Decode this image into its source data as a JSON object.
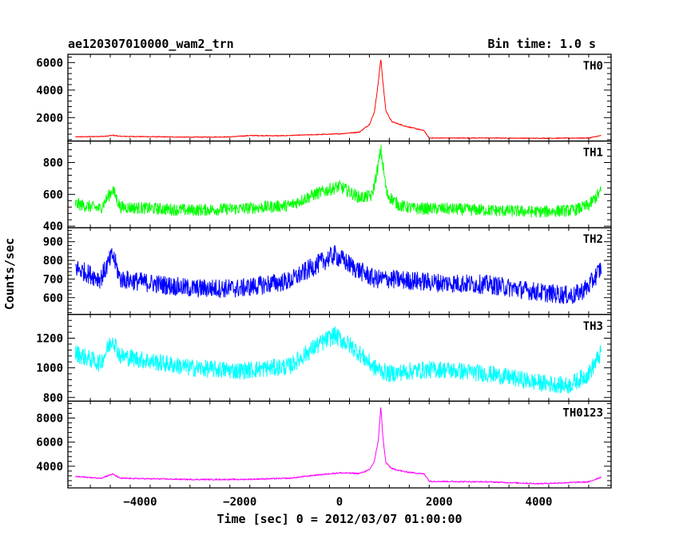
{
  "header": {
    "title": "ae120307010000_wam2_trn",
    "bin_time": "Bin time: 1.0 s"
  },
  "chart_data": {
    "type": "line",
    "title": "ae120307010000_wam2_trn",
    "subtitle": "Bin time: 1.0 s",
    "xlabel": "Time [sec] 0 = 2012/03/07 01:00:00",
    "ylabel": "Counts/sec",
    "xlim": [
      -5450,
      5450
    ],
    "x_ticks": [
      -4000,
      -2000,
      0,
      2000,
      4000
    ],
    "grid": false,
    "panels": [
      {
        "name": "TH0",
        "color": "#ff0000",
        "ylim": [
          300,
          6600
        ],
        "y_ticks": [
          2000,
          4000,
          6000
        ],
        "noise": 30,
        "x": [
          -5300,
          -4700,
          -4550,
          -4400,
          -3000,
          -2200,
          -1800,
          -1200,
          -500,
          0,
          400,
          600,
          700,
          780,
          830,
          870,
          930,
          1050,
          1300,
          1700,
          1760,
          1800,
          3000,
          4000,
          5000,
          5250
        ],
        "values": [
          600,
          640,
          720,
          640,
          580,
          600,
          700,
          680,
          760,
          820,
          950,
          1500,
          2400,
          4600,
          6300,
          4600,
          2500,
          1700,
          1400,
          1050,
          700,
          520,
          520,
          500,
          520,
          700
        ]
      },
      {
        "name": "TH1",
        "color": "#00ff00",
        "ylim": [
          390,
          935
        ],
        "y_ticks": [
          400,
          600,
          800
        ],
        "noise": 38,
        "x": [
          -5300,
          -4800,
          -4550,
          -4400,
          -3000,
          -2000,
          -1000,
          -500,
          0,
          400,
          650,
          760,
          830,
          880,
          950,
          1200,
          1500,
          2000,
          3000,
          4000,
          4700,
          5000,
          5250
        ],
        "values": [
          540,
          510,
          630,
          520,
          500,
          510,
          530,
          600,
          650,
          580,
          590,
          750,
          880,
          760,
          600,
          530,
          510,
          510,
          500,
          490,
          500,
          530,
          620
        ]
      },
      {
        "name": "TH2",
        "color": "#0000ff",
        "ylim": [
          510,
          975
        ],
        "y_ticks": [
          600,
          700,
          800,
          900
        ],
        "noise": 52,
        "x": [
          -5300,
          -4800,
          -4550,
          -4400,
          -3000,
          -2000,
          -1000,
          -500,
          -100,
          300,
          700,
          1000,
          1500,
          2000,
          3000,
          4000,
          4700,
          5000,
          5250
        ],
        "values": [
          760,
          700,
          830,
          700,
          650,
          650,
          690,
          770,
          830,
          760,
          700,
          700,
          690,
          680,
          670,
          630,
          610,
          660,
          760
        ]
      },
      {
        "name": "TH3",
        "color": "#00ffff",
        "ylim": [
          775,
          1360
        ],
        "y_ticks": [
          800,
          1000,
          1200
        ],
        "noise": 60,
        "x": [
          -5300,
          -4800,
          -4550,
          -4400,
          -3000,
          -2000,
          -1000,
          -500,
          -100,
          300,
          700,
          1000,
          1500,
          2000,
          3000,
          4000,
          4600,
          5000,
          5250
        ],
        "values": [
          1100,
          1030,
          1200,
          1080,
          1000,
          980,
          1010,
          1140,
          1220,
          1130,
          1000,
          960,
          980,
          990,
          960,
          900,
          880,
          960,
          1100
        ]
      },
      {
        "name": "TH0123",
        "color": "#ff00ff",
        "ylim": [
          2200,
          9400
        ],
        "y_ticks": [
          4000,
          6000,
          8000
        ],
        "noise": 55,
        "x": [
          -5300,
          -4800,
          -4550,
          -4400,
          -3000,
          -2000,
          -1000,
          -500,
          0,
          400,
          600,
          700,
          780,
          830,
          870,
          930,
          1050,
          1300,
          1700,
          1760,
          1800,
          3000,
          4000,
          5000,
          5250
        ],
        "values": [
          3150,
          3000,
          3350,
          3000,
          2900,
          2900,
          3000,
          3250,
          3450,
          3400,
          3700,
          4400,
          6200,
          9000,
          6400,
          4300,
          3800,
          3550,
          3350,
          3050,
          2750,
          2700,
          2550,
          2700,
          3100
        ]
      }
    ]
  }
}
